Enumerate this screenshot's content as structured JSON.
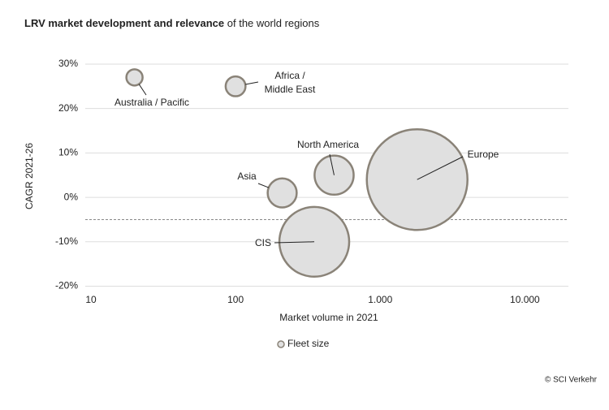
{
  "chart_data": {
    "type": "bubble",
    "title": "LRV market development and relevance",
    "subtitle": "of the world regions",
    "x_label": "Market volume in 2021",
    "y_label": "CAGR 2021-26",
    "legend_label": "Fleet size",
    "source": "© SCI Verkehr",
    "log_x": true,
    "grid": true,
    "xlim": [
      10,
      20000
    ],
    "xticks": [
      10,
      100,
      {
        "value": 1000,
        "label": "1.000"
      },
      {
        "value": 10000,
        "label": "10.000"
      }
    ],
    "ylim": [
      -21,
      32
    ],
    "yticks": [
      {
        "value": 30,
        "label": "30%"
      },
      {
        "value": 20,
        "label": "20%"
      },
      {
        "value": 10,
        "label": "10%"
      },
      {
        "value": 0,
        "label": "0%"
      },
      {
        "value": -10,
        "label": "-10%"
      },
      {
        "value": -20,
        "label": "-20%"
      }
    ],
    "reference_line": -5,
    "color": "#e0e0e0",
    "edge_color": "#8a8378",
    "categories": [
      "Australia / Pacific",
      "Africa /\nMiddle East",
      "Asia",
      "North America",
      "CIS",
      "Europe"
    ],
    "x": [
      20,
      100,
      210,
      480,
      350,
      1800
    ],
    "values": [
      27,
      25,
      1,
      5,
      -10,
      4
    ],
    "sizes": [
      100,
      150,
      320,
      580,
      1850,
      3850
    ]
  }
}
